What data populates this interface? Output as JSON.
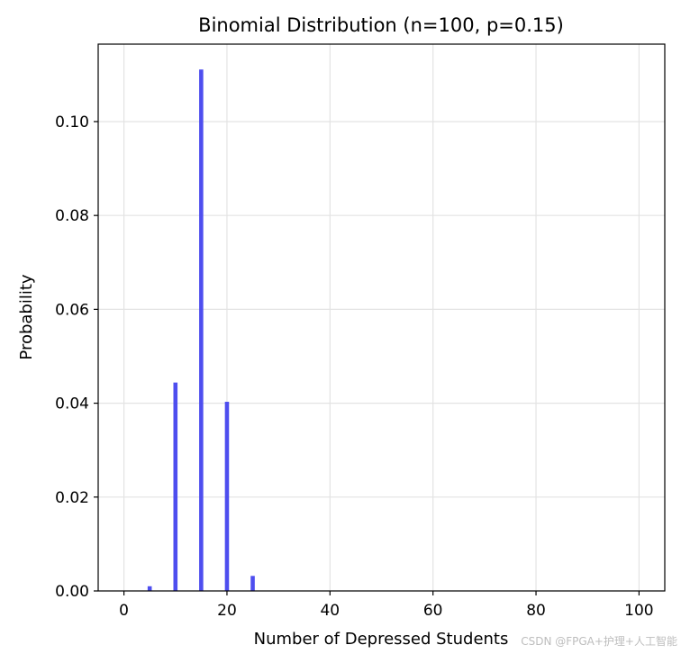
{
  "chart_data": {
    "type": "bar",
    "title": "Binomial Distribution (n=100, p=0.15)",
    "xlabel": "Number of Depressed Students",
    "ylabel": "Probability",
    "xlim": [
      -5,
      105
    ],
    "ylim": [
      0,
      0.1165
    ],
    "xticks": [
      0,
      20,
      40,
      60,
      80,
      100
    ],
    "yticks": [
      0.0,
      0.02,
      0.04,
      0.06,
      0.08,
      0.1
    ],
    "ytick_labels": [
      "0.00",
      "0.02",
      "0.04",
      "0.06",
      "0.08",
      "0.10"
    ],
    "grid": true,
    "bar_color": "#4444ee",
    "x": [
      5,
      10,
      15,
      20,
      25
    ],
    "values": [
      0.001,
      0.0444,
      0.1111,
      0.0403,
      0.0032
    ]
  },
  "watermark": "CSDN @FPGA+护理+人工智能"
}
